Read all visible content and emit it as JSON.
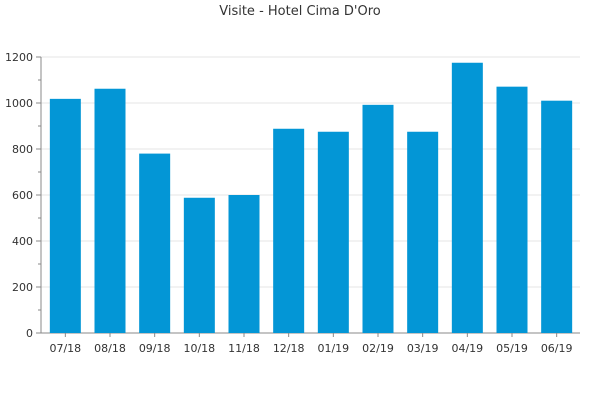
{
  "chart_data": {
    "type": "bar",
    "title": "Visite - Hotel Cima D'Oro",
    "xlabel": "",
    "ylabel": "",
    "categories": [
      "07/18",
      "08/18",
      "09/18",
      "10/18",
      "11/18",
      "12/18",
      "01/19",
      "02/19",
      "03/19",
      "04/19",
      "05/19",
      "06/19"
    ],
    "values": [
      1018,
      1062,
      780,
      588,
      600,
      888,
      875,
      992,
      875,
      1175,
      1071,
      1010
    ],
    "ylim": [
      0,
      1200
    ],
    "yticks": [
      0,
      200,
      400,
      600,
      800,
      1000,
      1200
    ],
    "grid": true,
    "legend": "none",
    "colors": {
      "bar": "#0396d6",
      "grid": "#e6e6e6",
      "axis": "#888888",
      "text": "#333333"
    }
  }
}
